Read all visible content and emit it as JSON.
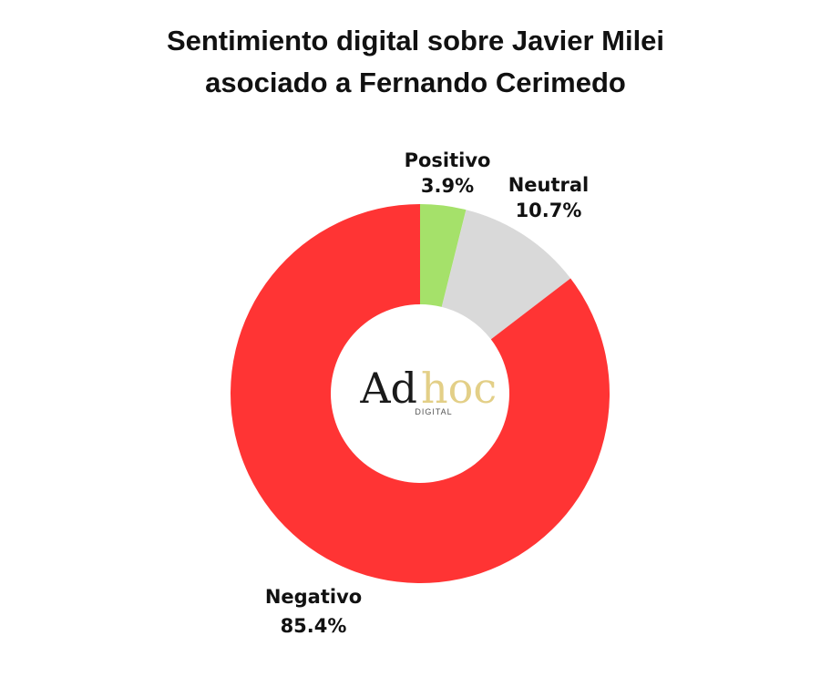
{
  "title": {
    "line1": "Sentimiento digital sobre Javier Milei",
    "line2": "asociado a Fernando Cerimedo"
  },
  "logo": {
    "word1": "Ad",
    "word2": "hoc",
    "sub": "DIGITAL",
    "colors": {
      "word1": "#1a1a1a",
      "word2": "#e3cf87"
    }
  },
  "chart_data": {
    "type": "pie",
    "title": "Sentimiento digital sobre Javier Milei asociado a Fernando Cerimedo",
    "donut": true,
    "legend": "none",
    "slices": [
      {
        "label": "Positivo",
        "value": 3.9,
        "value_label": "3.9%",
        "color": "#a5e16a"
      },
      {
        "label": "Neutral",
        "value": 10.7,
        "value_label": "10.7%",
        "color": "#d9d9d9"
      },
      {
        "label": "Negativo",
        "value": 85.4,
        "value_label": "85.4%",
        "color": "#ff3434"
      }
    ]
  }
}
